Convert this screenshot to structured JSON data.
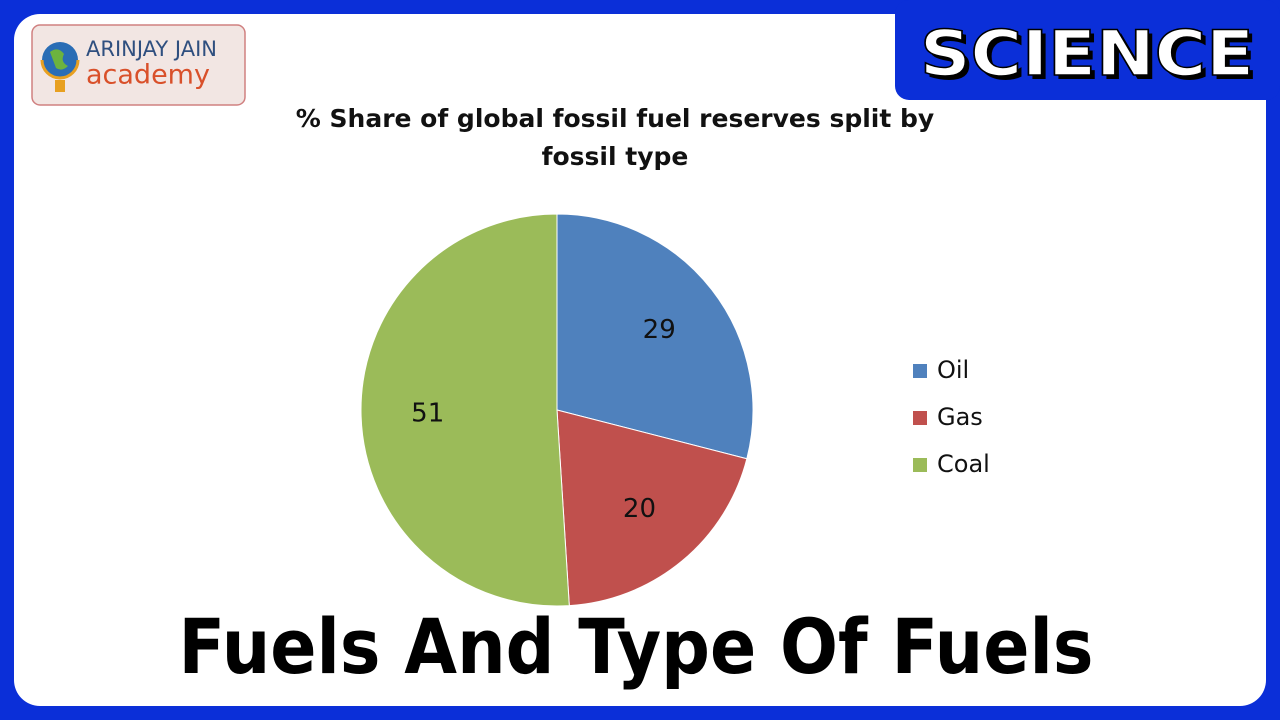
{
  "logo": {
    "line1": "ARINJAY JAIN",
    "line2": "academy"
  },
  "banner": "SCIENCE",
  "caption": "Fuels And Type Of Fuels",
  "chart_data": {
    "type": "pie",
    "title": "% Share of global fossil fuel reserves split by fossil type",
    "categories": [
      "Oil",
      "Gas",
      "Coal"
    ],
    "values": [
      29,
      20,
      51
    ],
    "colors": [
      "#4f81bd",
      "#c0504d",
      "#9bbb59"
    ],
    "legend": "right"
  }
}
